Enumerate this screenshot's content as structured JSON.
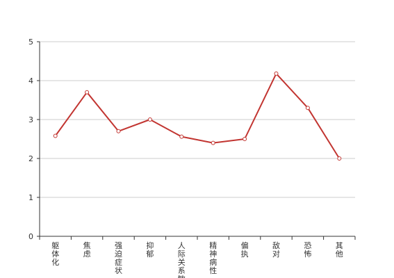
{
  "chart_data": {
    "type": "line",
    "categories": [
      "躯体化",
      "焦虑",
      "强迫症状",
      "抑郁",
      "人际关系敏感",
      "精神病性",
      "偏执",
      "敌对",
      "恐怖",
      "其他"
    ],
    "series": [
      {
        "values": [
          2.58,
          3.7,
          2.7,
          3.0,
          2.56,
          2.4,
          2.5,
          4.18,
          3.3,
          2.0
        ]
      }
    ],
    "ylim": [
      0,
      5
    ],
    "yticks": [
      0,
      1,
      2,
      3,
      4,
      5
    ],
    "grid": true,
    "colors": {
      "line": "#c23531",
      "grid": "#cccccc",
      "axis": "#333333"
    }
  }
}
